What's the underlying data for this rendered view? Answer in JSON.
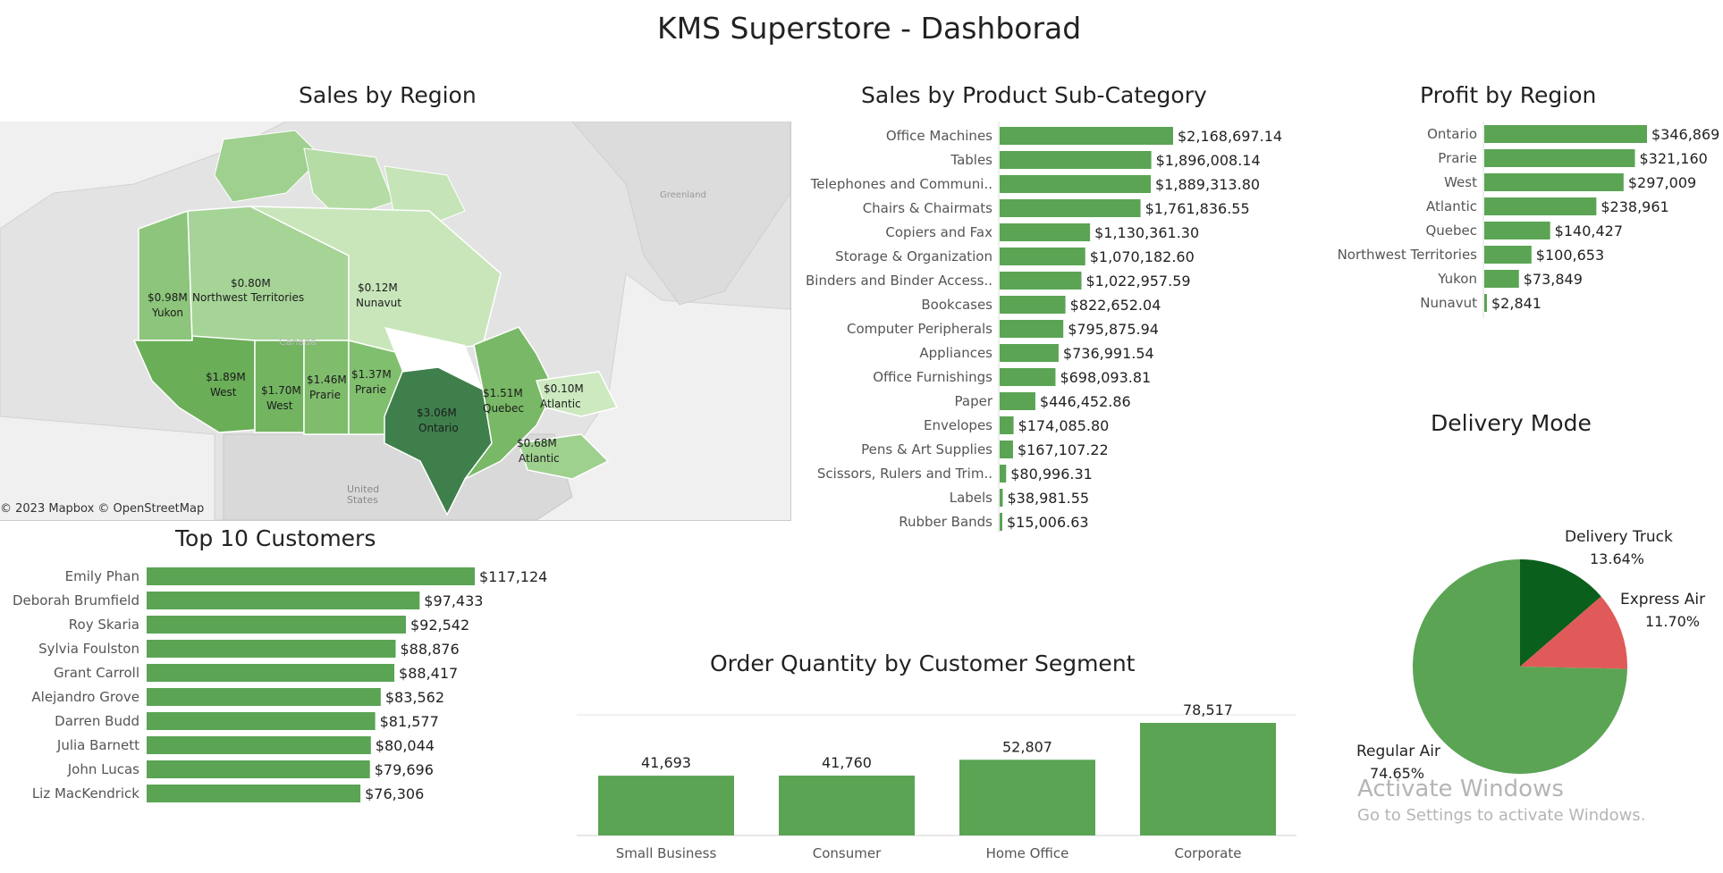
{
  "dashboard": {
    "title": "KMS Superstore - Dashborad",
    "watermark_line1": "Activate Windows",
    "watermark_line2": "Go to Settings to activate Windows.",
    "bar_color": "#5aa454"
  },
  "titles": {
    "sales_by_region": "Sales by Region",
    "sales_by_subcat": "Sales by Product Sub-Category",
    "profit_by_region": "Profit by Region",
    "top_customers": "Top 10 Customers",
    "order_qty": "Order Quantity by Customer Segment",
    "delivery_mode": "Delivery Mode"
  },
  "map": {
    "attribution": "© 2023 Mapbox  © OpenStreetMap",
    "labels": {
      "greenland": "Greenland",
      "united_states": "United\nStates",
      "canada": "Canada"
    },
    "regions": [
      {
        "value": "$0.98M",
        "name": "Yukon"
      },
      {
        "value": "$0.80M",
        "name": "Northwest Territories"
      },
      {
        "value": "$0.12M",
        "name": "Nunavut"
      },
      {
        "value": "$1.89M",
        "name": "West"
      },
      {
        "value": "$1.70M",
        "name": "West"
      },
      {
        "value": "$1.46M",
        "name": "Prarie"
      },
      {
        "value": "$1.37M",
        "name": "Prarie"
      },
      {
        "value": "$3.06M",
        "name": "Ontario"
      },
      {
        "value": "$1.51M",
        "name": "Quebec"
      },
      {
        "value": "$0.10M",
        "name": "Atlantic"
      },
      {
        "value": "$0.68M",
        "name": "Atlantic"
      }
    ]
  },
  "chart_data": [
    {
      "id": "subcat",
      "type": "bar",
      "orientation": "horizontal",
      "title": "Sales by Product Sub-Category",
      "categories": [
        "Office Machines",
        "Tables",
        "Telephones and Communi..",
        "Chairs & Chairmats",
        "Copiers and Fax",
        "Storage & Organization",
        "Binders and Binder Access..",
        "Bookcases",
        "Computer Peripherals",
        "Appliances",
        "Office Furnishings",
        "Paper",
        "Envelopes",
        "Pens & Art Supplies",
        "Scissors, Rulers and Trim..",
        "Labels",
        "Rubber Bands"
      ],
      "values": [
        2168697.14,
        1896008.14,
        1889313.8,
        1761836.55,
        1130361.3,
        1070182.6,
        1022957.59,
        822652.04,
        795875.94,
        736991.54,
        698093.81,
        446452.86,
        174085.8,
        167107.22,
        80996.31,
        38981.55,
        15006.63
      ],
      "labels": [
        "$2,168,697.14",
        "$1,896,008.14",
        "$1,889,313.80",
        "$1,761,836.55",
        "$1,130,361.30",
        "$1,070,182.60",
        "$1,022,957.59",
        "$822,652.04",
        "$795,875.94",
        "$736,991.54",
        "$698,093.81",
        "$446,452.86",
        "$174,085.80",
        "$167,107.22",
        "$80,996.31",
        "$38,981.55",
        "$15,006.63"
      ]
    },
    {
      "id": "profit",
      "type": "bar",
      "orientation": "horizontal",
      "title": "Profit by Region",
      "categories": [
        "Ontario",
        "Prarie",
        "West",
        "Atlantic",
        "Quebec",
        "Northwest Territories",
        "Yukon",
        "Nunavut"
      ],
      "values": [
        346869,
        321160,
        297009,
        238961,
        140427,
        100653,
        73849,
        2841
      ],
      "labels": [
        "$346,869",
        "$321,160",
        "$297,009",
        "$238,961",
        "$140,427",
        "$100,653",
        "$73,849",
        "$2,841"
      ]
    },
    {
      "id": "customers",
      "type": "bar",
      "orientation": "horizontal",
      "title": "Top 10 Customers",
      "categories": [
        "Emily Phan",
        "Deborah Brumfield",
        "Roy Skaria",
        "Sylvia Foulston",
        "Grant Carroll",
        "Alejandro Grove",
        "Darren Budd",
        "Julia Barnett",
        "John Lucas",
        "Liz MacKendrick"
      ],
      "values": [
        117124,
        97433,
        92542,
        88876,
        88417,
        83562,
        81577,
        80044,
        79696,
        76306
      ],
      "labels": [
        "$117,124",
        "$97,433",
        "$92,542",
        "$88,876",
        "$88,417",
        "$83,562",
        "$81,577",
        "$80,044",
        "$79,696",
        "$76,306"
      ]
    },
    {
      "id": "segment",
      "type": "bar",
      "orientation": "vertical",
      "title": "Order Quantity by Customer Segment",
      "categories": [
        "Small Business",
        "Consumer",
        "Home Office",
        "Corporate"
      ],
      "values": [
        41693,
        41760,
        52807,
        78517
      ],
      "labels": [
        "41,693",
        "41,760",
        "52,807",
        "78,517"
      ]
    },
    {
      "id": "delivery",
      "type": "pie",
      "title": "Delivery Mode",
      "categories": [
        "Delivery Truck",
        "Express Air",
        "Regular Air"
      ],
      "values": [
        13.64,
        11.7,
        74.65
      ],
      "labels": [
        "13.64%",
        "11.70%",
        "74.65%"
      ],
      "colors": [
        "#0b5f1c",
        "#e05a5a",
        "#5aa454"
      ]
    }
  ]
}
